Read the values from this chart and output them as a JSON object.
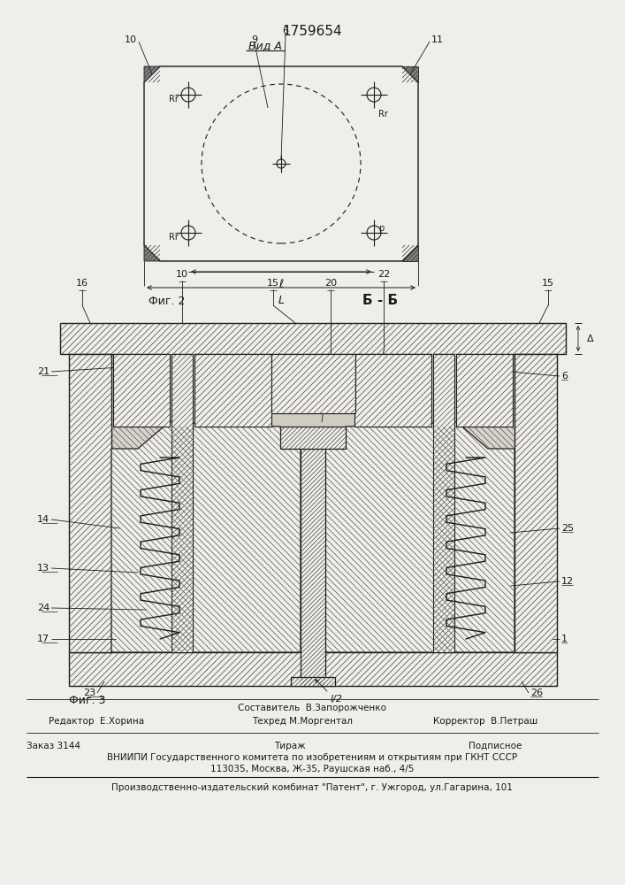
{
  "patent_number": "1759654",
  "view_a_label": "Вид А",
  "section_bb_label": "Б - Б",
  "fig2_label": "Фиг. 2",
  "fig3_label": "Фиг. 3",
  "footer_composer": "Составитель  В.Запорожченко",
  "footer_line1_left": "Редактор  Е.Хорина",
  "footer_line1_mid": "Техред М.Моргентал",
  "footer_line1_right": "Корректор  В.Петраш",
  "footer_order": "Заказ 3144",
  "footer_tirazh": "Тираж",
  "footer_podpisnoe": "Подписное",
  "footer_vniip1": "ВНИИПИ Государственного комитета по изобретениям и открытиям при ГКНТ СССР",
  "footer_vniip2": "113035, Москва, Ж-35, Раушская наб., 4/5",
  "footer_bottom": "Производственно-издательский комбинат \"Патент\", г. Ужгород, ул.Гагарина, 101",
  "bg_color": "#f0eeea",
  "line_color": "#1a1a1a"
}
